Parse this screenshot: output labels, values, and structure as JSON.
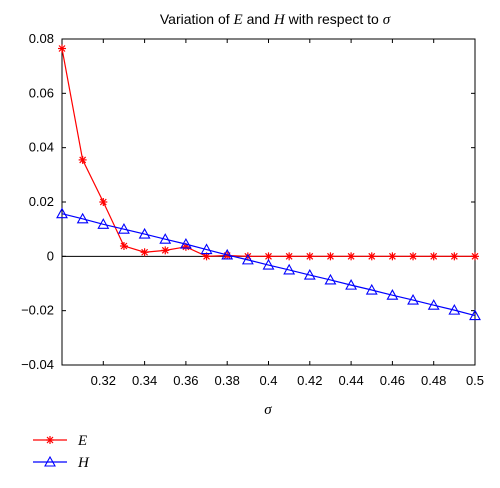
{
  "chart_data": {
    "type": "line",
    "title_prefix": "Variation of ",
    "title_e": "E",
    "title_and": " and ",
    "title_h": "H",
    "title_suffix": " with respect to ",
    "title_sigma": "σ",
    "xlabel": "σ",
    "ylabel": "",
    "xlim": [
      0.3,
      0.5
    ],
    "ylim": [
      -0.04,
      0.08
    ],
    "x_ticks": [
      0.32,
      0.34,
      0.36,
      0.38,
      0.4,
      0.42,
      0.44,
      0.46,
      0.48,
      0.5
    ],
    "x_tick_labels": [
      "0.32",
      "0.34",
      "0.36",
      "0.38",
      "0.4",
      "0.42",
      "0.44",
      "0.46",
      "0.48",
      "0.5"
    ],
    "y_ticks": [
      -0.04,
      -0.02,
      0,
      0.02,
      0.04,
      0.06,
      0.08
    ],
    "y_tick_labels": [
      "−0.04",
      "−0.02",
      "0",
      "0.02",
      "0.04",
      "0.06",
      "0.08"
    ],
    "grid": false,
    "zero_line": true,
    "legend_position": "below-left",
    "x": [
      0.3,
      0.31,
      0.32,
      0.33,
      0.34,
      0.35,
      0.36,
      0.37,
      0.38,
      0.39,
      0.4,
      0.41,
      0.42,
      0.43,
      0.44,
      0.45,
      0.46,
      0.47,
      0.48,
      0.49,
      0.5
    ],
    "series": [
      {
        "name": "E",
        "color": "#ff0000",
        "marker": "asterisk",
        "values": [
          0.0765,
          0.0355,
          0.02,
          0.0038,
          0.0015,
          0.0022,
          0.0035,
          0.0,
          0.0003,
          0.0,
          0.0,
          0.0,
          0.0,
          0.0,
          0.0,
          0.0,
          0.0,
          0.0,
          0.0,
          0.0,
          0.0
        ]
      },
      {
        "name": "H",
        "color": "#0000ff",
        "marker": "triangle",
        "values": [
          0.0157,
          0.0138,
          0.0118,
          0.01,
          0.0082,
          0.0063,
          0.0045,
          0.0025,
          0.0005,
          -0.0013,
          -0.0032,
          -0.005,
          -0.0069,
          -0.0087,
          -0.0106,
          -0.0124,
          -0.0143,
          -0.0161,
          -0.018,
          -0.0198,
          -0.0218
        ]
      }
    ]
  }
}
